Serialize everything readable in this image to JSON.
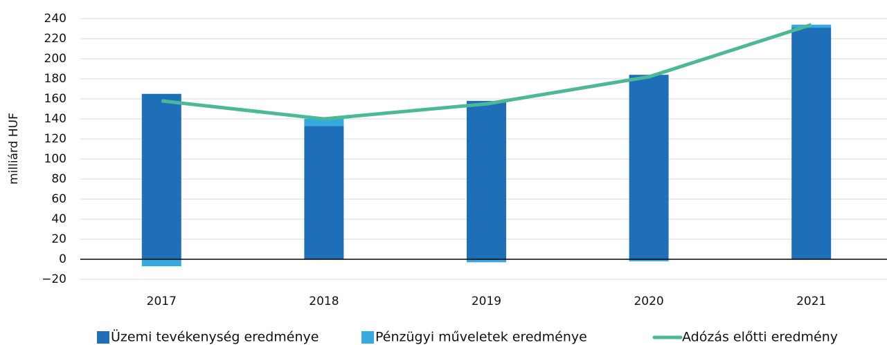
{
  "chart_data": {
    "type": "bar",
    "y_label": "milliárd HUF",
    "categories": [
      "2017",
      "2018",
      "2019",
      "2020",
      "2021"
    ],
    "series": [
      {
        "name": "Üzemi tevékenység eredménye",
        "type": "bar",
        "color": "#1f6fb8",
        "values": [
          165,
          133,
          158,
          184,
          231
        ]
      },
      {
        "name": "Pénzügyi műveletek eredménye",
        "type": "bar",
        "color": "#36a9e1",
        "values": [
          -7,
          7,
          -3,
          -2,
          3
        ]
      },
      {
        "name": "Adózás előtti eredmény",
        "type": "line",
        "color": "#4cb896",
        "values": [
          158,
          140,
          155,
          182,
          234
        ]
      }
    ],
    "ylim": [
      -20,
      240
    ],
    "yticks": [
      {
        "value": -20,
        "label": "−20"
      },
      0,
      20,
      40,
      60,
      80,
      100,
      120,
      140,
      160,
      180,
      200,
      220,
      240
    ],
    "grid": true,
    "legend": "bottom"
  }
}
